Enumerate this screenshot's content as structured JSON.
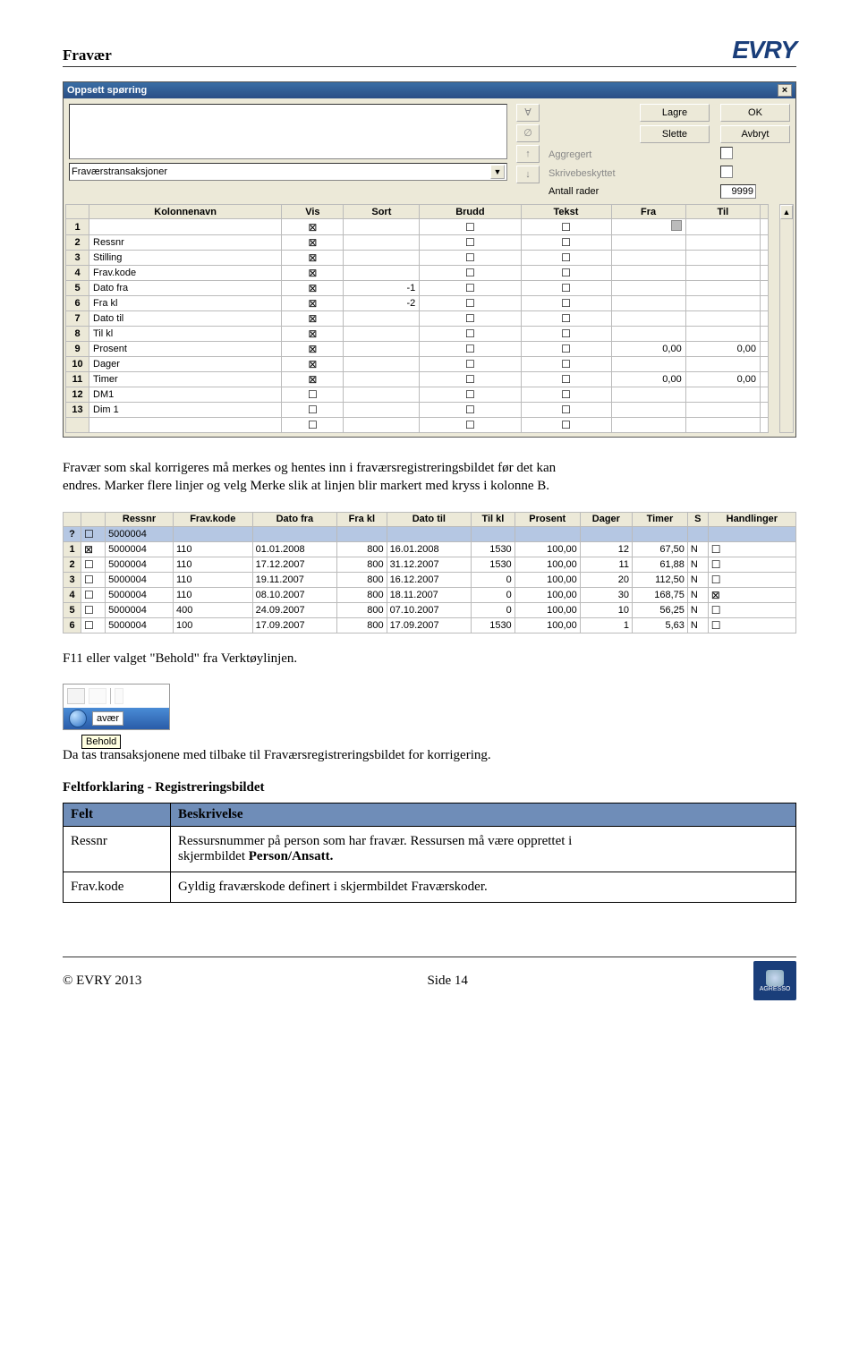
{
  "header": {
    "title": "Fravær",
    "logo": "EVRY"
  },
  "dialog": {
    "title": "Oppsett spørring",
    "dropdown": "Fraværstransaksjoner",
    "buttons": {
      "lagre": "Lagre",
      "slette": "Slette",
      "ok": "OK",
      "avbryt": "Avbryt"
    },
    "labels": {
      "aggregert": "Aggregert",
      "skrive": "Skrivebeskyttet",
      "antall": "Antall rader"
    },
    "antall_value": "9999",
    "arrows": [
      "∀",
      "∅",
      "↑",
      "↓"
    ],
    "columns": [
      "",
      "Kolonnenavn",
      "Vis",
      "Sort",
      "Brudd",
      "Tekst",
      "Fra",
      "Til"
    ],
    "rows": [
      {
        "n": "1",
        "name": "",
        "vis": true,
        "sort": "",
        "brudd": false,
        "tekst": false,
        "fra_gray": true,
        "fra": "",
        "til": ""
      },
      {
        "n": "2",
        "name": "Ressnr",
        "vis": true,
        "sort": "",
        "brudd": false,
        "tekst": false,
        "fra": "",
        "til": ""
      },
      {
        "n": "3",
        "name": "Stilling",
        "vis": true,
        "sort": "",
        "brudd": false,
        "tekst": false,
        "fra": "",
        "til": ""
      },
      {
        "n": "4",
        "name": "Frav.kode",
        "vis": true,
        "sort": "",
        "brudd": false,
        "tekst": false,
        "fra": "",
        "til": ""
      },
      {
        "n": "5",
        "name": "Dato fra",
        "vis": true,
        "sort": "-1",
        "brudd": false,
        "tekst": false,
        "fra": "",
        "til": ""
      },
      {
        "n": "6",
        "name": "Fra kl",
        "vis": true,
        "sort": "-2",
        "brudd": false,
        "tekst": false,
        "fra": "",
        "til": ""
      },
      {
        "n": "7",
        "name": "Dato til",
        "vis": true,
        "sort": "",
        "brudd": false,
        "tekst": false,
        "fra": "",
        "til": ""
      },
      {
        "n": "8",
        "name": "Til kl",
        "vis": true,
        "sort": "",
        "brudd": false,
        "tekst": false,
        "fra": "",
        "til": ""
      },
      {
        "n": "9",
        "name": "Prosent",
        "vis": true,
        "sort": "",
        "brudd": false,
        "tekst": false,
        "fra": "0,00",
        "til": "0,00"
      },
      {
        "n": "10",
        "name": "Dager",
        "vis": true,
        "sort": "",
        "brudd": false,
        "tekst": false,
        "fra": "",
        "til": ""
      },
      {
        "n": "11",
        "name": "Timer",
        "vis": true,
        "sort": "",
        "brudd": false,
        "tekst": false,
        "fra": "0,00",
        "til": "0,00"
      },
      {
        "n": "12",
        "name": "DM1",
        "vis": false,
        "sort": "",
        "brudd": false,
        "tekst": false,
        "fra": "",
        "til": ""
      },
      {
        "n": "13",
        "name": "Dim 1",
        "vis": false,
        "sort": "",
        "brudd": false,
        "tekst": false,
        "fra": "",
        "til": ""
      },
      {
        "n": "",
        "name": "",
        "vis": false,
        "sort": "",
        "brudd": false,
        "tekst": false,
        "fra": "",
        "til": ""
      }
    ]
  },
  "para1a": "Fravær som skal korrigeres må merkes og hentes inn i fraværsregistreringsbildet før det kan",
  "para1b": "endres. Marker flere linjer og velg Merke slik at linjen blir markert med kryss i kolonne B.",
  "result_table": {
    "columns": [
      "",
      "",
      "Ressnr",
      "Frav.kode",
      "Dato fra",
      "Fra kl",
      "Dato til",
      "Til kl",
      "Prosent",
      "Dager",
      "Timer",
      "S",
      "Handlinger"
    ],
    "filter_row": {
      "ressnr": "5000004"
    },
    "rows": [
      {
        "n": "1",
        "chk": true,
        "ressnr": "5000004",
        "kode": "110",
        "dfra": "01.01.2008",
        "fkl": "800",
        "dtil": "16.01.2008",
        "tkl": "1530",
        "pros": "100,00",
        "dag": "12",
        "tim": "67,50",
        "s": "N",
        "hand": false
      },
      {
        "n": "2",
        "chk": false,
        "ressnr": "5000004",
        "kode": "110",
        "dfra": "17.12.2007",
        "fkl": "800",
        "dtil": "31.12.2007",
        "tkl": "1530",
        "pros": "100,00",
        "dag": "11",
        "tim": "61,88",
        "s": "N",
        "hand": false
      },
      {
        "n": "3",
        "chk": false,
        "ressnr": "5000004",
        "kode": "110",
        "dfra": "19.11.2007",
        "fkl": "800",
        "dtil": "16.12.2007",
        "tkl": "0",
        "pros": "100,00",
        "dag": "20",
        "tim": "112,50",
        "s": "N",
        "hand": false
      },
      {
        "n": "4",
        "chk": false,
        "ressnr": "5000004",
        "kode": "110",
        "dfra": "08.10.2007",
        "fkl": "800",
        "dtil": "18.11.2007",
        "tkl": "0",
        "pros": "100,00",
        "dag": "30",
        "tim": "168,75",
        "s": "N",
        "hand": true
      },
      {
        "n": "5",
        "chk": false,
        "ressnr": "5000004",
        "kode": "400",
        "dfra": "24.09.2007",
        "fkl": "800",
        "dtil": "07.10.2007",
        "tkl": "0",
        "pros": "100,00",
        "dag": "10",
        "tim": "56,25",
        "s": "N",
        "hand": false
      },
      {
        "n": "6",
        "chk": false,
        "ressnr": "5000004",
        "kode": "100",
        "dfra": "17.09.2007",
        "fkl": "800",
        "dtil": "17.09.2007",
        "tkl": "1530",
        "pros": "100,00",
        "dag": "1",
        "tim": "5,63",
        "s": "N",
        "hand": false
      }
    ]
  },
  "para2": "F11 eller valget \"Behold\" fra Verktøylinjen.",
  "toolsnip": {
    "label": "avær",
    "tooltip": "Behold"
  },
  "para3": "Da tas transaksjonene med tilbake til Fraværsregistreringsbildet for korrigering.",
  "section_title": "Feltforklaring - Registreringsbildet",
  "bluetable": {
    "h1": "Felt",
    "h2": "Beskrivelse",
    "r1c1": "Ressnr",
    "r1c2a": "Ressursnummer på person som har fravær. Ressursen må være opprettet i",
    "r1c2b": "skjermbildet ",
    "r1c2c": "Person/Ansatt.",
    "r2c1": "Frav.kode",
    "r2c2": "Gyldig fraværskode definert i skjermbildet Fraværskoder."
  },
  "footer": {
    "left": "© EVRY 2013",
    "right": "Side 14",
    "badge": "AGRESSO"
  }
}
